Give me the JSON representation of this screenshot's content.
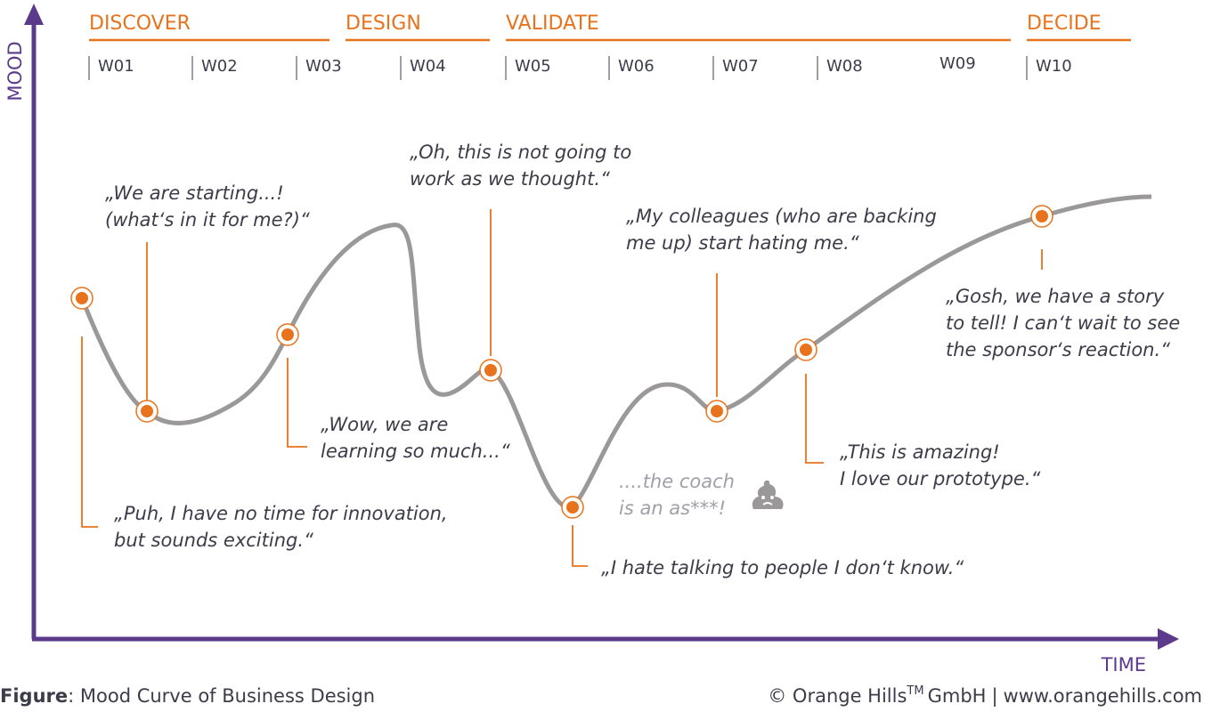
{
  "phases": [
    "DISCOVER",
    "DESIGN",
    "VALIDATE",
    "DECIDE"
  ],
  "weeks": [
    "W01",
    "W02",
    "W03",
    "W04",
    "W05",
    "W06",
    "W07",
    "W08",
    "W09",
    "W10"
  ],
  "axes": {
    "y": "MOOD",
    "x": "TIME"
  },
  "quotes": [
    {
      "lines": [
        "„Puh, I have no time for innovation,",
        "but sounds exciting.“"
      ]
    },
    {
      "lines": [
        "„We are starting...!",
        "(what‘s in it for me?)“"
      ]
    },
    {
      "lines": [
        "„Wow, we are",
        "learning so much...“"
      ]
    },
    {
      "lines": [
        "„Oh, this is not going to",
        "work as we thought.“"
      ]
    },
    {
      "lines": [
        "„I hate talking to people I don‘t know.“"
      ]
    },
    {
      "lines": [
        "„My colleagues (who are backing",
        "me up) start hating me.“"
      ]
    },
    {
      "lines": [
        "„This is amazing!",
        "I love our prototype.“"
      ]
    },
    {
      "lines": [
        "„Gosh, we have a story",
        "to tell! I can‘t wait to see",
        "the sponsor‘s reaction.“"
      ]
    }
  ],
  "aside": {
    "lines": [
      "....the coach",
      "is an as***!"
    ]
  },
  "caption": {
    "label": "Figure",
    "text": ": Mood Curve of Business Design"
  },
  "credit": {
    "owner": "© Orange Hills",
    "mark": "TM",
    "company": "GmbH",
    "separator": "|",
    "url": "www.orangehills.com"
  }
}
